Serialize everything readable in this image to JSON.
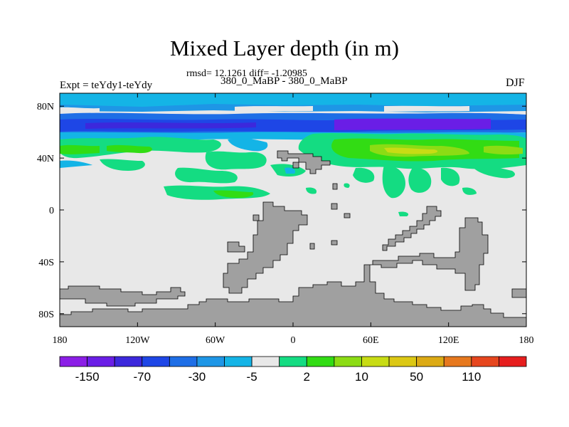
{
  "header": {
    "title": "Mixed Layer depth (in m)",
    "stats": "rmsd= 12.1261 diff= -1.20985",
    "case": "380_0_MaBP - 380_0_MaBP",
    "experiment": "Expt = teYdy1-teYdy",
    "season": "DJF"
  },
  "map": {
    "x_ticks": [
      {
        "lon": -180,
        "label": "180"
      },
      {
        "lon": -120,
        "label": "120W"
      },
      {
        "lon": -60,
        "label": "60W"
      },
      {
        "lon": 0,
        "label": "0"
      },
      {
        "lon": 60,
        "label": "60E"
      },
      {
        "lon": 120,
        "label": "120E"
      },
      {
        "lon": 180,
        "label": "180"
      }
    ],
    "y_ticks": [
      {
        "lat": 80,
        "label": "80N"
      },
      {
        "lat": 40,
        "label": "40N"
      },
      {
        "lat": 0,
        "label": "0"
      },
      {
        "lat": -40,
        "label": "40S"
      },
      {
        "lat": -80,
        "label": "80S"
      }
    ],
    "lon_range": [
      -180,
      180
    ],
    "lat_range": [
      -90,
      90
    ],
    "land_color": "#a0a0a0",
    "background_color": "#e8e8e8"
  },
  "colorbar": {
    "colors": [
      "#8b1ee6",
      "#6a1ee6",
      "#3c28dc",
      "#1e46e6",
      "#1e6ee6",
      "#1e96e6",
      "#14b4e6",
      "#e8e8e8",
      "#14dc82",
      "#32dc14",
      "#8cdc14",
      "#c8dc14",
      "#dcc814",
      "#dcaa14",
      "#e6781e",
      "#e6461e",
      "#e61e1e"
    ],
    "labels": [
      {
        "boundary": 1,
        "text": "-150"
      },
      {
        "boundary": 3,
        "text": "-70"
      },
      {
        "boundary": 5,
        "text": "-30"
      },
      {
        "boundary": 7,
        "text": "-5"
      },
      {
        "boundary": 9,
        "text": "2"
      },
      {
        "boundary": 11,
        "text": "10"
      },
      {
        "boundary": 13,
        "text": "50"
      },
      {
        "boundary": 15,
        "text": "110"
      }
    ]
  }
}
